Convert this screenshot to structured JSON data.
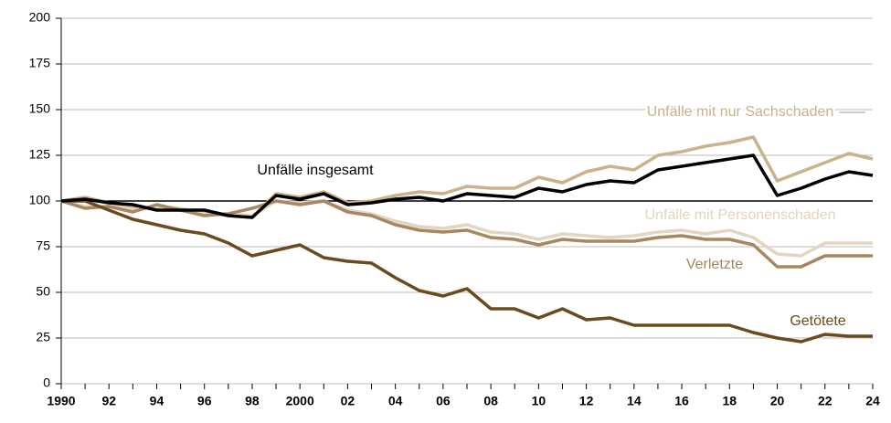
{
  "chart_data": {
    "type": "line",
    "x": [
      1990,
      1991,
      1992,
      1993,
      1994,
      1995,
      1996,
      1997,
      1998,
      1999,
      2000,
      2001,
      2002,
      2003,
      2004,
      2005,
      2006,
      2007,
      2008,
      2009,
      2010,
      2011,
      2012,
      2013,
      2014,
      2015,
      2016,
      2017,
      2018,
      2019,
      2020,
      2021,
      2022,
      2023,
      2024
    ],
    "xlim": [
      1990,
      2024
    ],
    "xticks": [
      1990,
      {
        "value": 1992,
        "label": "92"
      },
      {
        "value": 1994,
        "label": "94"
      },
      {
        "value": 1996,
        "label": "96"
      },
      {
        "value": 1998,
        "label": "98"
      },
      2000,
      {
        "value": 2002,
        "label": "02"
      },
      {
        "value": 2004,
        "label": "04"
      },
      {
        "value": 2006,
        "label": "06"
      },
      {
        "value": 2008,
        "label": "08"
      },
      {
        "value": 2010,
        "label": "10"
      },
      {
        "value": 2012,
        "label": "12"
      },
      {
        "value": 2014,
        "label": "14"
      },
      {
        "value": 2016,
        "label": "16"
      },
      {
        "value": 2018,
        "label": "18"
      },
      {
        "value": 2020,
        "label": "20"
      },
      {
        "value": 2022,
        "label": "22"
      },
      {
        "value": 2024,
        "label": "24"
      }
    ],
    "ylim": [
      0,
      200
    ],
    "yticks": [
      0,
      25,
      50,
      75,
      100,
      125,
      150,
      175,
      200
    ],
    "grid": true,
    "baseline": 100,
    "series": [
      {
        "name": "Unfälle mit nur Sachschaden",
        "color": "#c9b28c",
        "values": [
          100,
          102,
          99,
          97,
          96,
          95,
          94,
          92,
          91,
          104,
          102,
          105,
          99,
          100,
          103,
          105,
          104,
          108,
          107,
          107,
          113,
          110,
          116,
          119,
          117,
          125,
          127,
          130,
          132,
          135,
          111,
          116,
          121,
          126,
          123
        ]
      },
      {
        "name": "Unfälle mit Personenschaden",
        "color": "#e2d6c1",
        "values": [
          100,
          97,
          97,
          95,
          97,
          96,
          93,
          93,
          92,
          100,
          99,
          100,
          95,
          93,
          89,
          86,
          85,
          87,
          83,
          82,
          79,
          82,
          81,
          80,
          81,
          83,
          84,
          82,
          84,
          80,
          71,
          70,
          77,
          77,
          77
        ]
      },
      {
        "name": "Verletzte",
        "color": "#a8865f",
        "values": [
          100,
          96,
          97,
          94,
          98,
          95,
          92,
          93,
          96,
          100,
          98,
          100,
          94,
          92,
          87,
          84,
          83,
          84,
          80,
          79,
          76,
          79,
          78,
          78,
          78,
          80,
          81,
          79,
          79,
          76,
          64,
          64,
          70,
          70,
          70
        ]
      },
      {
        "name": "Getötete",
        "color": "#6b4a1d",
        "values": [
          100,
          100,
          95,
          90,
          87,
          84,
          82,
          77,
          70,
          73,
          76,
          69,
          67,
          66,
          58,
          51,
          48,
          52,
          41,
          41,
          36,
          41,
          35,
          36,
          32,
          32,
          32,
          32,
          32,
          28,
          25,
          23,
          27,
          26,
          26
        ]
      },
      {
        "name": "Unfälle insgesamt",
        "color": "#000000",
        "values": [
          100,
          101,
          99,
          98,
          95,
          95,
          95,
          92,
          91,
          103,
          101,
          104,
          98,
          99,
          101,
          102,
          100,
          104,
          103,
          102,
          107,
          105,
          109,
          111,
          110,
          117,
          119,
          121,
          123,
          125,
          103,
          107,
          112,
          116,
          114
        ]
      }
    ]
  }
}
